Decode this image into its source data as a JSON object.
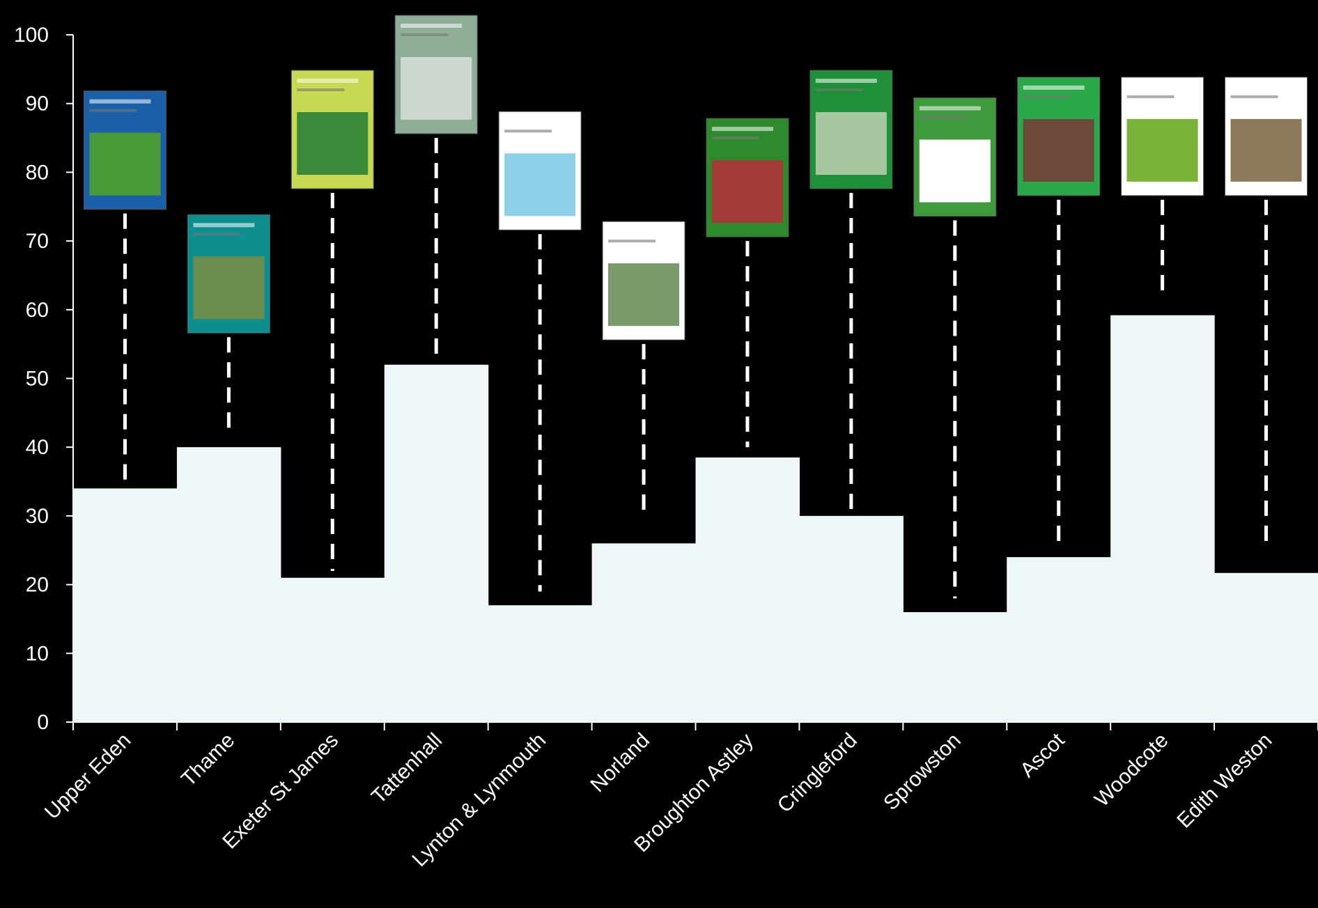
{
  "chart_data": {
    "type": "area",
    "categories": [
      "Upper Eden",
      "Thame",
      "Exeter St James",
      "Tattenhall",
      "Lynton & Lynmouth",
      "Norland",
      "Broughton Astley",
      "Cringleford",
      "Sprowston",
      "Ascot",
      "Woodcote",
      "Edith Weston"
    ],
    "values": [
      34,
      40,
      21,
      52,
      17,
      26,
      38.5,
      30,
      16,
      24,
      59.2,
      21.7
    ],
    "pointer_levels": [
      {
        "from": 35,
        "to": 74
      },
      {
        "from": 42,
        "to": 56
      },
      {
        "from": 22,
        "to": 77
      },
      {
        "from": 53,
        "to": 85
      },
      {
        "from": 19,
        "to": 71
      },
      {
        "from": 30,
        "to": 55
      },
      {
        "from": 40,
        "to": 70
      },
      {
        "from": 30,
        "to": 77
      },
      {
        "from": 18,
        "to": 73
      },
      {
        "from": 25,
        "to": 76
      },
      {
        "from": 62,
        "to": 76
      },
      {
        "from": 25,
        "to": 76
      }
    ],
    "plan_covers": [
      {
        "colors": [
          "#1a5fa8",
          "#4a9a3a"
        ],
        "title": "UPPER EDEN NEIGHBOURHOOD DEVELOPMENT PLAN",
        "years": "2012 2025"
      },
      {
        "colors": [
          "#0e8f8f",
          "#6b8e4e"
        ],
        "title": "Neighbourhood Plan"
      },
      {
        "colors": [
          "#c8d850",
          "#3a8a3a"
        ],
        "title": "St James Forum"
      },
      {
        "colors": [
          "#8fae98",
          "#cfd8cf"
        ],
        "title": "Tattenhall Parish Council"
      },
      {
        "colors": [
          "#ffffff",
          "#8ed0e8"
        ],
        "title": "Lynton & Lynmouth Neighbourhood Plan"
      },
      {
        "colors": [
          "#ffffff",
          "#7a9a6a"
        ],
        "title": "Norland Neighbourhood Plan"
      },
      {
        "colors": [
          "#2d8a2d",
          "#a33a3a"
        ],
        "title": "THE BIG PLAN FOR BROUGHTON ASTLEY"
      },
      {
        "colors": [
          "#1f8f3a",
          "#a7c7a0"
        ],
        "title": "Cringleford Neighbourhood Plan"
      },
      {
        "colors": [
          "#3d9a3d",
          "#ffffff"
        ],
        "title": "Sprowston Neighbourhood Plan"
      },
      {
        "colors": [
          "#2aa84a",
          "#6b4a3a"
        ],
        "title": "Ascot Neighbourhood Plan"
      },
      {
        "colors": [
          "#ffffff",
          "#7ab33a"
        ],
        "title": "Woodcote Neighbourhood Plan"
      },
      {
        "colors": [
          "#ffffff",
          "#8a7a5a"
        ],
        "title": "Edith Weston Neighbourhood Plan"
      }
    ],
    "ylim": [
      0,
      100
    ],
    "yticks": [
      0,
      10,
      20,
      30,
      40,
      50,
      60,
      70,
      80,
      90,
      100
    ],
    "xlabel": "",
    "ylabel": "",
    "grid": false,
    "colors": {
      "background": "#000000",
      "fill": "#eef6f9",
      "axis": "#ffffff",
      "pointer": "#ffffff",
      "text": "#ffffff"
    }
  }
}
